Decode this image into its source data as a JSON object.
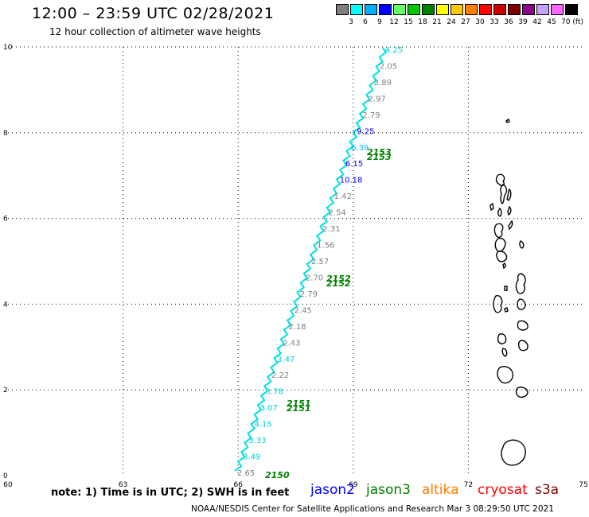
{
  "header": {
    "title": "12:00 – 23:59 UTC 02/28/2021",
    "subtitle": "12 hour collection of altimeter wave heights"
  },
  "colorbar": {
    "swatches": [
      "#7f7f7f",
      "#00ffff",
      "#00b0ff",
      "#0000ff",
      "#66ff66",
      "#00c800",
      "#008000",
      "#ffff00",
      "#ffc800",
      "#ff8000",
      "#ff0000",
      "#c80000",
      "#800000",
      "#8c008c",
      "#c8a0ff",
      "#ff66ff",
      "#000000"
    ],
    "labels": [
      "3",
      "6",
      "9",
      "12",
      "15",
      "18",
      "21",
      "24",
      "27",
      "30",
      "33",
      "36",
      "39",
      "42",
      "45",
      "70 (ft)"
    ]
  },
  "map": {
    "x_ticks": [
      "60",
      "63",
      "66",
      "69",
      "72",
      "75"
    ],
    "y_ticks": [
      "0",
      "2",
      "4",
      "6",
      "8",
      "10"
    ],
    "track_color": "#00e0e0",
    "time_labels": [
      "2150",
      "2151",
      "2152",
      "2153"
    ],
    "time_label_color": "#008000",
    "points": [
      {
        "text": "2.65",
        "color": "#808080"
      },
      {
        "text": "3.49",
        "color": "#00d0d0"
      },
      {
        "text": "3.33",
        "color": "#00d0d0"
      },
      {
        "text": "4.15",
        "color": "#00d0d0"
      },
      {
        "text": "3.07",
        "color": "#00d0d0"
      },
      {
        "text": "3.78",
        "color": "#00d0d0"
      },
      {
        "text": "2.22",
        "color": "#808080"
      },
      {
        "text": "3.47",
        "color": "#00d0d0"
      },
      {
        "text": "2.43",
        "color": "#808080"
      },
      {
        "text": "2.18",
        "color": "#808080"
      },
      {
        "text": "2.45",
        "color": "#808080"
      },
      {
        "text": "2.79",
        "color": "#808080"
      },
      {
        "text": "2.70",
        "color": "#808080"
      },
      {
        "text": "2.57",
        "color": "#808080"
      },
      {
        "text": "1.56",
        "color": "#808080"
      },
      {
        "text": "2.31",
        "color": "#808080"
      },
      {
        "text": "2.54",
        "color": "#808080"
      },
      {
        "text": "1.42",
        "color": "#808080"
      },
      {
        "text": "10.18",
        "color": "#0000ff"
      },
      {
        "text": "6.15",
        "color": "#0000ff"
      },
      {
        "text": "6.39",
        "color": "#00b0ff"
      },
      {
        "text": "9.25",
        "color": "#0000ff"
      },
      {
        "text": "2.79",
        "color": "#808080"
      },
      {
        "text": "2.97",
        "color": "#808080"
      },
      {
        "text": "2.89",
        "color": "#808080"
      },
      {
        "text": "2.05",
        "color": "#808080"
      },
      {
        "text": "4.25",
        "color": "#00d0d0"
      }
    ]
  },
  "footer": {
    "note": "note: 1) Time is in UTC; 2) SWH is in feet",
    "credit": "NOAA/NESDIS Center for Satellite Applications and Research   Mar  3 08:29:50 UTC 2021",
    "satellites": [
      {
        "name": "jason2",
        "color": "#0000ff"
      },
      {
        "name": "jason3",
        "color": "#008000"
      },
      {
        "name": "altika",
        "color": "#ff8000"
      },
      {
        "name": "cryosat",
        "color": "#ff0000"
      },
      {
        "name": "s3a",
        "color": "#800000"
      }
    ]
  }
}
